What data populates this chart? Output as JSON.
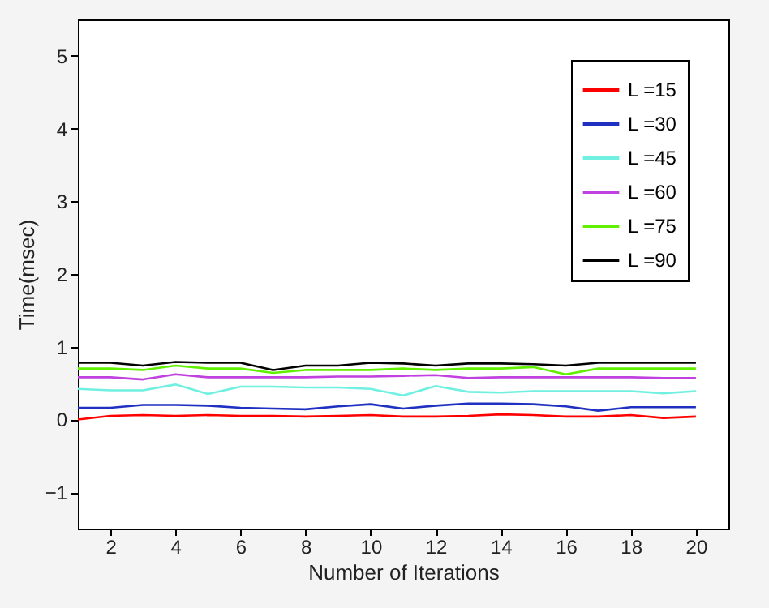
{
  "chart_data": {
    "type": "line",
    "xlabel": "Number of Iterations",
    "ylabel": "Time(msec)",
    "x": [
      1,
      2,
      3,
      4,
      5,
      6,
      7,
      8,
      9,
      10,
      11,
      12,
      13,
      14,
      15,
      16,
      17,
      18,
      19,
      20
    ],
    "xlim": [
      1,
      21
    ],
    "xticks": [
      2,
      4,
      6,
      8,
      10,
      12,
      14,
      16,
      18,
      20
    ],
    "ylim": [
      -1.5,
      5.5
    ],
    "yticks": [
      -1,
      0,
      1,
      2,
      3,
      4,
      5
    ],
    "grid": false,
    "legend": "top right",
    "line_style": "solid",
    "series": [
      {
        "name": "L =15",
        "color": "#ff0000",
        "values": [
          0.0,
          0.05,
          0.06,
          0.05,
          0.06,
          0.05,
          0.05,
          0.04,
          0.05,
          0.06,
          0.04,
          0.04,
          0.05,
          0.07,
          0.06,
          0.04,
          0.04,
          0.06,
          0.02,
          0.04
        ]
      },
      {
        "name": "L =30",
        "color": "#2030c0",
        "values": [
          0.16,
          0.16,
          0.2,
          0.2,
          0.19,
          0.16,
          0.15,
          0.14,
          0.18,
          0.21,
          0.15,
          0.19,
          0.22,
          0.22,
          0.21,
          0.18,
          0.12,
          0.17,
          0.17,
          0.17
        ]
      },
      {
        "name": "L =45",
        "color": "#70f0e0",
        "values": [
          0.42,
          0.4,
          0.4,
          0.48,
          0.35,
          0.45,
          0.45,
          0.44,
          0.44,
          0.42,
          0.33,
          0.46,
          0.38,
          0.37,
          0.39,
          0.39,
          0.39,
          0.39,
          0.36,
          0.39
        ]
      },
      {
        "name": "L =60",
        "color": "#c040e0",
        "values": [
          0.58,
          0.58,
          0.55,
          0.62,
          0.58,
          0.58,
          0.58,
          0.58,
          0.59,
          0.59,
          0.6,
          0.61,
          0.57,
          0.58,
          0.58,
          0.58,
          0.58,
          0.58,
          0.57,
          0.57
        ]
      },
      {
        "name": "L =75",
        "color": "#60f000",
        "values": [
          0.7,
          0.7,
          0.68,
          0.74,
          0.7,
          0.7,
          0.64,
          0.68,
          0.68,
          0.68,
          0.7,
          0.68,
          0.7,
          0.7,
          0.72,
          0.62,
          0.7,
          0.7,
          0.7,
          0.7
        ]
      },
      {
        "name": "L =90",
        "color": "#000000",
        "values": [
          0.78,
          0.78,
          0.74,
          0.79,
          0.78,
          0.78,
          0.68,
          0.74,
          0.74,
          0.78,
          0.77,
          0.74,
          0.77,
          0.77,
          0.76,
          0.74,
          0.78,
          0.78,
          0.78,
          0.78
        ]
      }
    ]
  }
}
